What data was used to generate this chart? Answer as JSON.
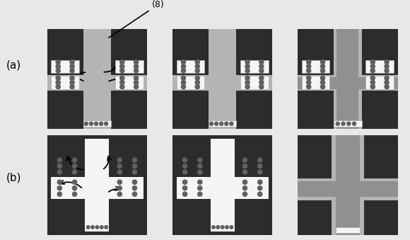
{
  "dark_bg": "#2c2c2c",
  "light_gray": "#b4b4b4",
  "medium_gray": "#909090",
  "darker_gray": "#787878",
  "white": "#f5f5f5",
  "dot_color": "#606060",
  "border_color": "#aaaaaa",
  "label_a": "(a)",
  "label_b": "(b)",
  "label_8": "(8)",
  "fig_width": 5.8,
  "fig_height": 3.39,
  "dpi": 100
}
